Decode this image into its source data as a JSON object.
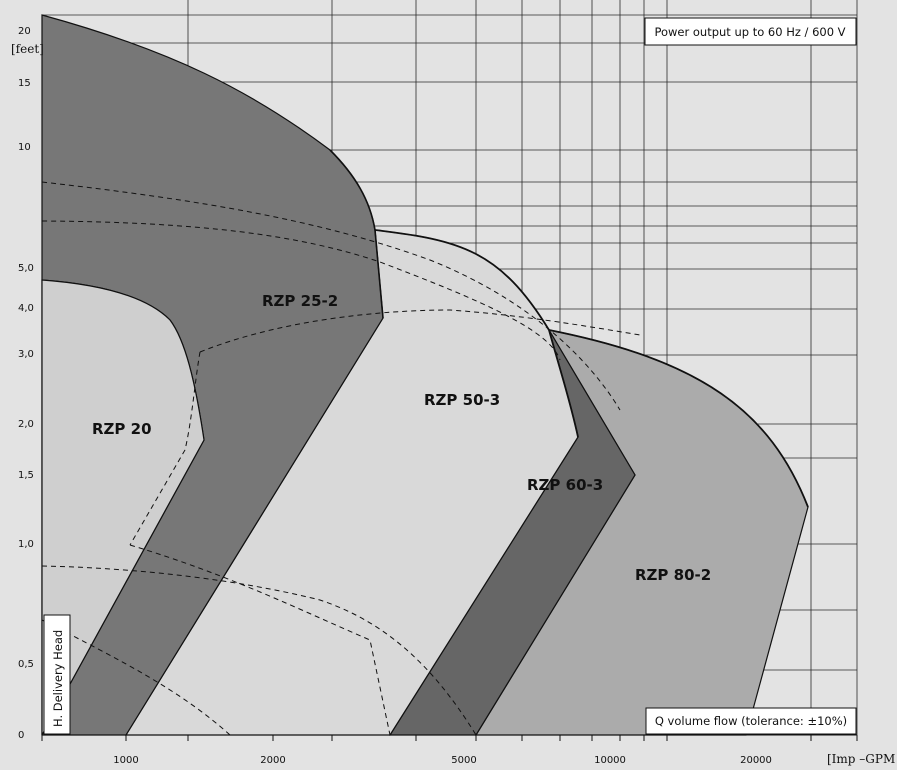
{
  "chart_data": {
    "type": "area",
    "title": "Power output up to 60 Hz / 600 V",
    "ylabel": "H. Delivery Head",
    "yunit": "[feet]",
    "xlabel": "Q volume flow (tolerance: ±10%)",
    "xunit": "[Imp –GPM",
    "x_tick_labels": [
      "1000",
      "2000",
      "5000",
      "10000",
      "20000"
    ],
    "y_tick_labels": [
      "0",
      "0,5",
      "1,0",
      "1,5",
      "2,0",
      "3,0",
      "4,0",
      "5,0",
      "10",
      "15",
      "20"
    ],
    "grid": true,
    "series": [
      {
        "name": "RZP 20",
        "fill": "#cfcfcf"
      },
      {
        "name": "RZP 25-2",
        "fill": "#777777"
      },
      {
        "name": "RZP 50-3",
        "fill": "#d9d9d9"
      },
      {
        "name": "RZP 60-3",
        "fill": "#666666"
      },
      {
        "name": "RZP 80-2",
        "fill": "#ababab"
      }
    ]
  }
}
